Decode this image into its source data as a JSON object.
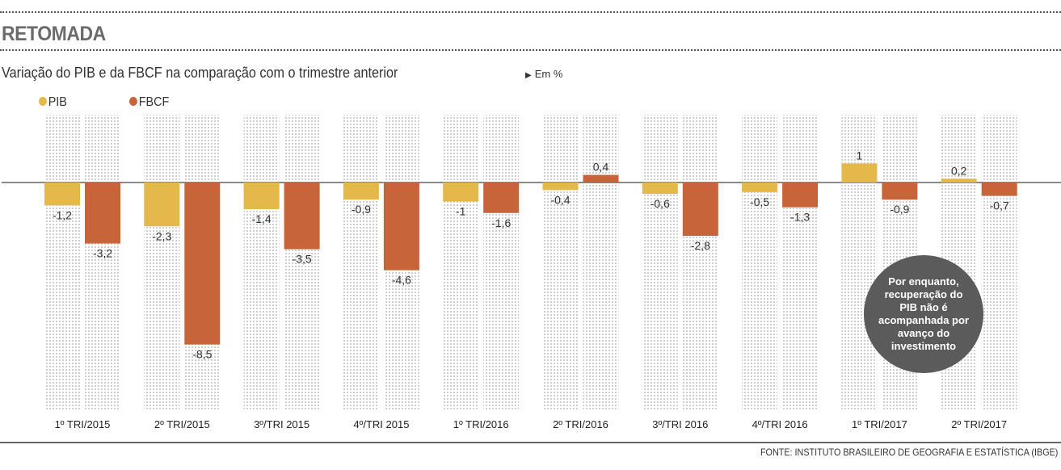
{
  "header": {
    "title": "RETOMADA",
    "subtitle": "Variação do PIB e da FBCF na comparação com o trimestre anterior",
    "unit_marker": "▶",
    "unit": "Em %"
  },
  "legend": [
    {
      "label": "PIB",
      "color": "#e5b84c"
    },
    {
      "label": "FBCF",
      "color": "#c8643a"
    }
  ],
  "annotation": "Por enquanto, recuperação do PIB não é acompanhada por avanço do investimento",
  "source": "FONTE: INSTITUTO BRASILEIRO DE GEOGRAFIA E ESTATÍSTICA (IBGE)",
  "chart_data": {
    "type": "bar",
    "title": "Variação do PIB e da FBCF na comparação com o trimestre anterior",
    "xlabel": "",
    "ylabel": "Em %",
    "categories": [
      "1º TRI/2015",
      "2º TRI/2015",
      "3º/TRI 2015",
      "4º/TRI 2015",
      "1º TRI/2016",
      "2º TRI/2016",
      "3º/TRI 2016",
      "4º/TRI 2016",
      "1º TRI/2017",
      "2º TRI/2017"
    ],
    "series": [
      {
        "name": "PIB",
        "color": "#e5b84c",
        "values": [
          -1.2,
          -2.3,
          -1.4,
          -0.9,
          -1,
          -0.4,
          -0.6,
          -0.5,
          1,
          0.2
        ],
        "labels": [
          "-1,2",
          "-2,3",
          "-1,4",
          "-0,9",
          "-1",
          "-0,4",
          "-0,6",
          "-0,5",
          "1",
          "0,2"
        ]
      },
      {
        "name": "FBCF",
        "color": "#c8643a",
        "values": [
          -3.2,
          -8.5,
          -3.5,
          -4.6,
          -1.6,
          0.4,
          -2.8,
          -1.3,
          -0.9,
          -0.7
        ],
        "labels": [
          "-3,2",
          "-8,5",
          "-3,5",
          "-4,6",
          "-1,6",
          "0,4",
          "-2,8",
          "-1,3",
          "-0,9",
          "-0,7"
        ]
      }
    ],
    "ylim": [
      -11.8,
      3.6
    ],
    "grid": false,
    "legend_position": "top-left"
  }
}
